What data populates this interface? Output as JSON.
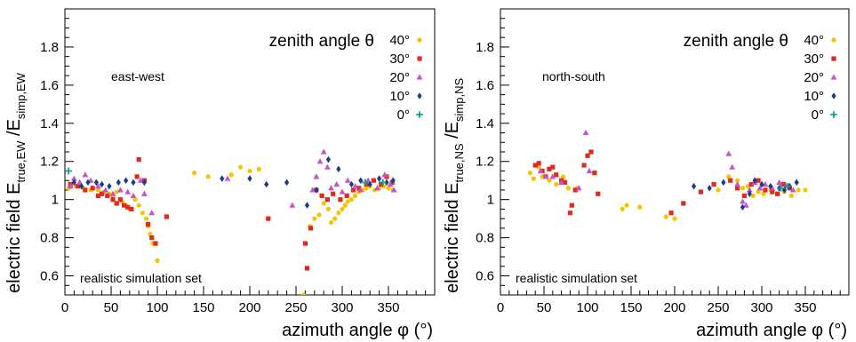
{
  "chart_data": [
    {
      "type": "scatter",
      "panel": "east-west",
      "annotation": "east-west",
      "footnote": "realistic simulation set",
      "xlabel": "azimuth angle φ (°)",
      "ylabel_main": "electric  field E",
      "ylabel_sub1": "true,EW",
      "ylabel_mid": "/E",
      "ylabel_sub2": "simp,EW",
      "xlim": [
        0,
        400
      ],
      "ylim": [
        0.5,
        2.0
      ],
      "xticks": [
        0,
        50,
        100,
        150,
        200,
        250,
        300,
        350
      ],
      "yticks": [
        0.6,
        0.8,
        1.0,
        1.2,
        1.4,
        1.6,
        1.8
      ],
      "ytick_labels": [
        "0.6",
        "0.8",
        "1",
        "1.2",
        "1.4",
        "1.6",
        "1.8"
      ],
      "legend_title": "zenith angle  θ",
      "legend_position": "top-right",
      "series": [
        {
          "name": "40°",
          "color": "#f5c400",
          "marker": "circle",
          "points": [
            [
              4,
              1.06
            ],
            [
              12,
              1.07
            ],
            [
              20,
              1.06
            ],
            [
              28,
              1.05
            ],
            [
              36,
              1.05
            ],
            [
              42,
              1.04
            ],
            [
              48,
              1.03
            ],
            [
              52,
              1.02
            ],
            [
              56,
              1.04
            ],
            [
              60,
              1.0
            ],
            [
              62,
              0.99
            ],
            [
              66,
              0.97
            ],
            [
              70,
              0.95
            ],
            [
              76,
              1.0
            ],
            [
              80,
              0.97
            ],
            [
              84,
              0.93
            ],
            [
              88,
              0.9
            ],
            [
              90,
              0.86
            ],
            [
              92,
              0.82
            ],
            [
              95,
              0.77
            ],
            [
              100,
              0.68
            ],
            [
              140,
              1.14
            ],
            [
              155,
              1.12
            ],
            [
              180,
              1.13
            ],
            [
              190,
              1.17
            ],
            [
              200,
              1.15
            ],
            [
              210,
              1.16
            ],
            [
              258,
              0.5
            ],
            [
              265,
              0.86
            ],
            [
              270,
              0.9
            ],
            [
              275,
              0.92
            ],
            [
              280,
              0.98
            ],
            [
              285,
              0.95
            ],
            [
              288,
              0.88
            ],
            [
              292,
              0.9
            ],
            [
              296,
              0.93
            ],
            [
              300,
              0.95
            ],
            [
              303,
              0.97
            ],
            [
              306,
              0.99
            ],
            [
              310,
              1.0
            ],
            [
              314,
              1.02
            ],
            [
              318,
              1.04
            ],
            [
              322,
              1.05
            ],
            [
              326,
              1.06
            ],
            [
              330,
              1.07
            ],
            [
              335,
              1.05
            ],
            [
              340,
              1.06
            ],
            [
              345,
              1.07
            ],
            [
              350,
              1.06
            ],
            [
              355,
              1.05
            ]
          ]
        },
        {
          "name": "30°",
          "color": "#e02a1c",
          "marker": "square",
          "points": [
            [
              6,
              1.08
            ],
            [
              14,
              1.07
            ],
            [
              22,
              1.05
            ],
            [
              30,
              1.06
            ],
            [
              36,
              1.02
            ],
            [
              40,
              1.03
            ],
            [
              46,
              1.02
            ],
            [
              52,
              1.0
            ],
            [
              56,
              0.98
            ],
            [
              60,
              1.0
            ],
            [
              64,
              0.97
            ],
            [
              68,
              0.96
            ],
            [
              72,
              0.95
            ],
            [
              78,
              1.12
            ],
            [
              80,
              1.21
            ],
            [
              86,
              1.1
            ],
            [
              90,
              0.87
            ],
            [
              94,
              0.8
            ],
            [
              98,
              0.77
            ],
            [
              110,
              0.91
            ],
            [
              220,
              0.9
            ],
            [
              260,
              0.77
            ],
            [
              262,
              0.64
            ],
            [
              266,
              0.85
            ],
            [
              272,
              1.05
            ],
            [
              278,
              1.02
            ],
            [
              284,
              1.0
            ],
            [
              290,
              1.03
            ],
            [
              298,
              1.0
            ],
            [
              305,
              1.02
            ],
            [
              312,
              1.05
            ],
            [
              318,
              1.06
            ],
            [
              326,
              1.08
            ],
            [
              334,
              1.1
            ],
            [
              342,
              1.08
            ],
            [
              348,
              1.12
            ],
            [
              354,
              1.09
            ]
          ]
        },
        {
          "name": "20°",
          "color": "#c256c7",
          "marker": "triangle",
          "points": [
            [
              6,
              1.07
            ],
            [
              10,
              1.11
            ],
            [
              16,
              1.09
            ],
            [
              22,
              1.13
            ],
            [
              28,
              1.1
            ],
            [
              36,
              1.07
            ],
            [
              44,
              1.05
            ],
            [
              52,
              1.03
            ],
            [
              60,
              1.05
            ],
            [
              68,
              1.04
            ],
            [
              74,
              1.02
            ],
            [
              82,
              1.1
            ],
            [
              86,
              1.03
            ],
            [
              94,
              0.93
            ],
            [
              176,
              1.11
            ],
            [
              246,
              0.97
            ],
            [
              268,
              1.05
            ],
            [
              272,
              1.12
            ],
            [
              276,
              1.2
            ],
            [
              280,
              1.25
            ],
            [
              284,
              1.17
            ],
            [
              288,
              1.06
            ],
            [
              294,
              1.08
            ],
            [
              300,
              1.04
            ],
            [
              306,
              1.1
            ],
            [
              314,
              1.07
            ],
            [
              320,
              1.05
            ],
            [
              328,
              1.1
            ],
            [
              338,
              1.06
            ],
            [
              346,
              1.13
            ],
            [
              352,
              1.08
            ],
            [
              356,
              1.05
            ]
          ]
        },
        {
          "name": "10°",
          "color": "#1d3c8c",
          "marker": "diamond",
          "points": [
            [
              10,
              1.09
            ],
            [
              18,
              1.07
            ],
            [
              25,
              1.09
            ],
            [
              34,
              1.09
            ],
            [
              40,
              1.08
            ],
            [
              48,
              1.07
            ],
            [
              58,
              1.09
            ],
            [
              66,
              1.1
            ],
            [
              74,
              1.09
            ],
            [
              86,
              1.09
            ],
            [
              170,
              1.11
            ],
            [
              200,
              1.11
            ],
            [
              218,
              1.08
            ],
            [
              240,
              1.09
            ],
            [
              262,
              0.97
            ],
            [
              272,
              1.05
            ],
            [
              285,
              1.21
            ],
            [
              296,
              1.16
            ],
            [
              310,
              1.08
            ],
            [
              320,
              1.1
            ],
            [
              330,
              1.08
            ],
            [
              340,
              1.11
            ],
            [
              348,
              1.09
            ],
            [
              355,
              1.1
            ]
          ]
        },
        {
          "name": "0°",
          "color": "#1a9c8c",
          "marker": "plus",
          "points": [
            [
              4,
              1.15
            ],
            [
              325,
              1.09
            ],
            [
              344,
              1.09
            ]
          ]
        }
      ]
    },
    {
      "type": "scatter",
      "panel": "north-south",
      "annotation": "north-south",
      "footnote": "realistic simulation set",
      "xlabel": "azimuth angle φ (°)",
      "ylabel_main": "electric  field  E",
      "ylabel_sub1": "true,NS",
      "ylabel_mid": "/E",
      "ylabel_sub2": "simp,NS",
      "xlim": [
        0,
        400
      ],
      "ylim": [
        0.5,
        2.0
      ],
      "xticks": [
        0,
        50,
        100,
        150,
        200,
        250,
        300,
        350
      ],
      "yticks": [
        0.6,
        0.8,
        1.0,
        1.2,
        1.4,
        1.6,
        1.8
      ],
      "ytick_labels": [
        "0.6",
        "0.8",
        "1",
        "1.2",
        "1.4",
        "1.6",
        "1.8"
      ],
      "legend_title": "zenith angle  θ",
      "legend_position": "top-right",
      "series": [
        {
          "name": "40°",
          "color": "#f5c400",
          "marker": "circle",
          "points": [
            [
              34,
              1.14
            ],
            [
              38,
              1.11
            ],
            [
              44,
              1.17
            ],
            [
              48,
              1.12
            ],
            [
              56,
              1.1
            ],
            [
              64,
              1.08
            ],
            [
              72,
              1.12
            ],
            [
              78,
              1.06
            ],
            [
              88,
              1.06
            ],
            [
              140,
              0.95
            ],
            [
              145,
              0.97
            ],
            [
              160,
              0.96
            ],
            [
              190,
              0.91
            ],
            [
              200,
              0.9
            ],
            [
              250,
              1.05
            ],
            [
              262,
              1.12
            ],
            [
              272,
              1.1
            ],
            [
              278,
              1.06
            ],
            [
              284,
              1.07
            ],
            [
              290,
              1.02
            ],
            [
              296,
              1.04
            ],
            [
              302,
              1.03
            ],
            [
              310,
              1.05
            ],
            [
              318,
              1.03
            ],
            [
              326,
              1.04
            ],
            [
              334,
              1.02
            ],
            [
              342,
              1.05
            ],
            [
              350,
              1.05
            ]
          ]
        },
        {
          "name": "30°",
          "color": "#e02a1c",
          "marker": "square",
          "points": [
            [
              40,
              1.18
            ],
            [
              44,
              1.19
            ],
            [
              48,
              1.15
            ],
            [
              52,
              1.12
            ],
            [
              56,
              1.16
            ],
            [
              60,
              1.17
            ],
            [
              64,
              1.13
            ],
            [
              70,
              1.1
            ],
            [
              74,
              1.09
            ],
            [
              80,
              0.93
            ],
            [
              82,
              0.97
            ],
            [
              86,
              1.05
            ],
            [
              96,
              1.18
            ],
            [
              100,
              1.23
            ],
            [
              104,
              1.25
            ],
            [
              108,
              1.14
            ],
            [
              112,
              1.03
            ],
            [
              196,
              0.93
            ],
            [
              210,
              0.98
            ],
            [
              230,
              1.04
            ],
            [
              245,
              1.08
            ],
            [
              264,
              1.1
            ],
            [
              272,
              1.06
            ],
            [
              280,
              1.02
            ],
            [
              288,
              1.08
            ],
            [
              296,
              1.1
            ],
            [
              304,
              1.05
            ],
            [
              312,
              1.04
            ],
            [
              318,
              1.03
            ],
            [
              325,
              1.08
            ],
            [
              332,
              1.06
            ]
          ]
        },
        {
          "name": "20°",
          "color": "#c256c7",
          "marker": "triangle",
          "points": [
            [
              46,
              1.15
            ],
            [
              52,
              1.12
            ],
            [
              60,
              1.12
            ],
            [
              70,
              1.09
            ],
            [
              90,
              1.06
            ],
            [
              98,
              1.35
            ],
            [
              102,
              1.15
            ],
            [
              262,
              1.24
            ],
            [
              266,
              1.17
            ],
            [
              272,
              1.08
            ],
            [
              278,
              0.99
            ],
            [
              282,
              0.97
            ],
            [
              286,
              1.05
            ],
            [
              292,
              1.09
            ],
            [
              298,
              1.06
            ],
            [
              304,
              1.08
            ],
            [
              312,
              1.06
            ],
            [
              320,
              1.09
            ],
            [
              328,
              1.07
            ],
            [
              336,
              1.05
            ]
          ]
        },
        {
          "name": "10°",
          "color": "#1d3c8c",
          "marker": "diamond",
          "points": [
            [
              222,
              1.07
            ],
            [
              240,
              1.06
            ],
            [
              256,
              1.09
            ],
            [
              278,
              0.96
            ],
            [
              286,
              1.03
            ],
            [
              292,
              1.1
            ],
            [
              300,
              1.08
            ],
            [
              310,
              1.07
            ],
            [
              320,
              1.06
            ],
            [
              326,
              1.05
            ],
            [
              332,
              1.07
            ],
            [
              340,
              1.09
            ]
          ]
        },
        {
          "name": "0°",
          "color": "#1a9c8c",
          "marker": "plus",
          "points": [
            [
              322,
              1.06
            ],
            [
              330,
              1.07
            ]
          ]
        }
      ]
    }
  ]
}
